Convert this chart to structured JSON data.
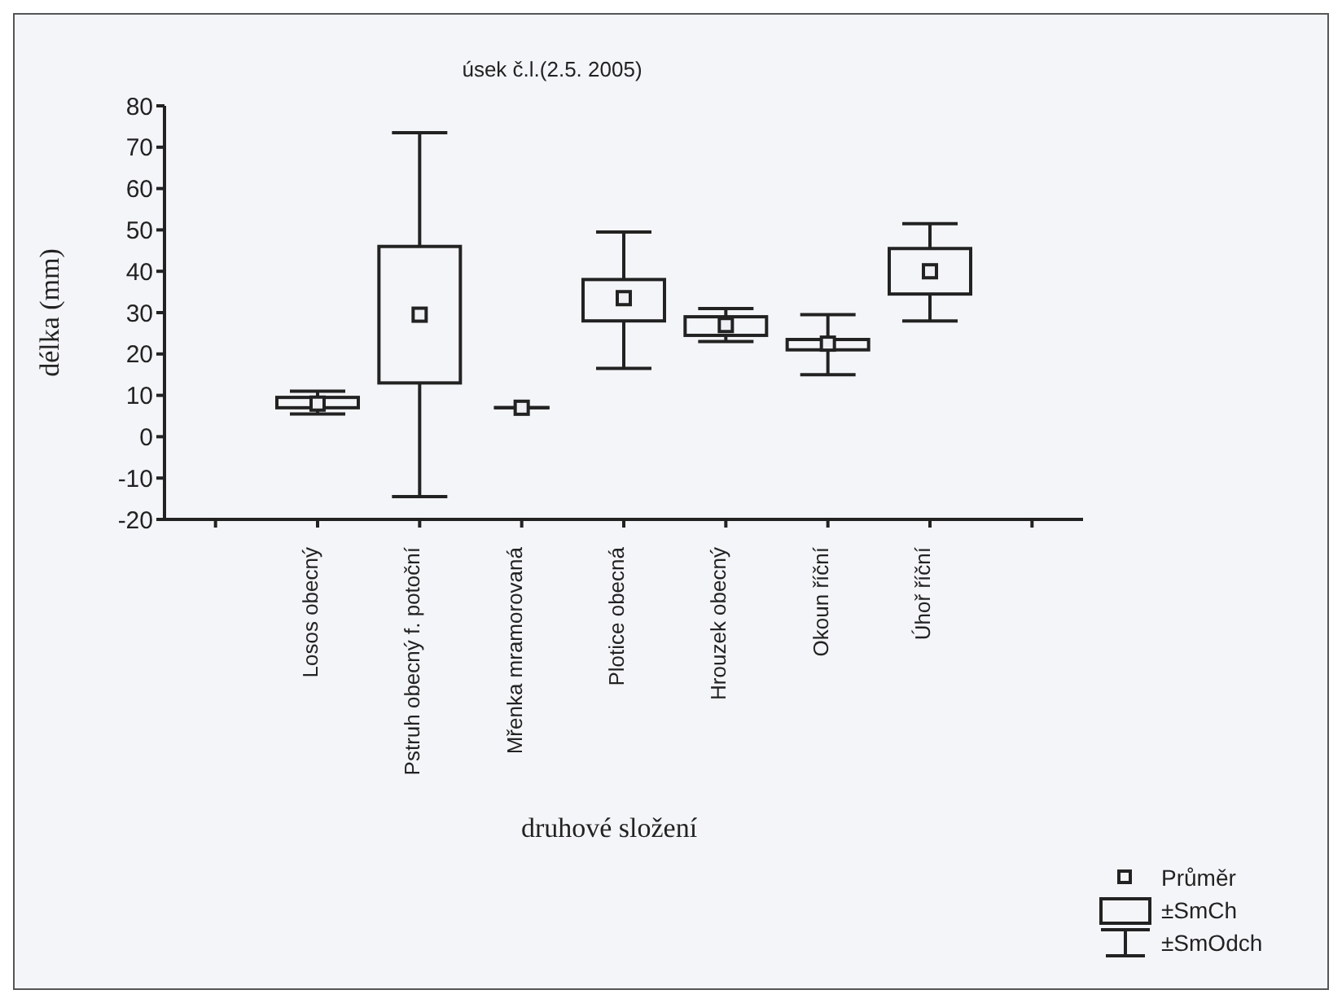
{
  "chart_data": {
    "type": "box",
    "title": "úsek č.l.(2.5. 2005)",
    "xlabel": "druhové složení",
    "ylabel": "délka (mm)",
    "categories": [
      "Losos obecný",
      "Pstruh obecný f. potoční",
      "Mřenka mramorovaná",
      "Plotice obecná",
      "Hrouzek obecný",
      "Okoun říční",
      "Úhoř říční"
    ],
    "boxes": [
      {
        "low": 5.5,
        "q1": 7,
        "q3": 9.5,
        "high": 11,
        "mean": 8
      },
      {
        "low": -14.5,
        "q1": 13,
        "q3": 46,
        "high": 73.5,
        "mean": 29.5
      },
      {
        "low": 7,
        "q1": 7,
        "q3": 7,
        "high": 7,
        "mean": 7
      },
      {
        "low": 16.5,
        "q1": 28,
        "q3": 38,
        "high": 49.5,
        "mean": 33.5
      },
      {
        "low": 23,
        "q1": 24.5,
        "q3": 29,
        "high": 31,
        "mean": 27
      },
      {
        "low": 15,
        "q1": 21,
        "q3": 23.5,
        "high": 29.5,
        "mean": 22.5
      },
      {
        "low": 28,
        "q1": 34.5,
        "q3": 45.5,
        "high": 51.5,
        "mean": 40
      }
    ],
    "ylim": [
      -20,
      80
    ],
    "yticks": [
      -20,
      -10,
      0,
      10,
      20,
      30,
      40,
      50,
      60,
      70,
      80
    ],
    "annotations": [
      "Průměr",
      "±SmCh",
      "±SmOdch"
    ]
  }
}
